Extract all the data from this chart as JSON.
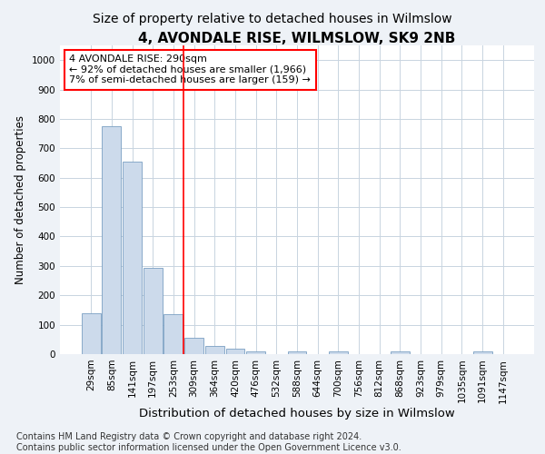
{
  "title": "4, AVONDALE RISE, WILMSLOW, SK9 2NB",
  "subtitle": "Size of property relative to detached houses in Wilmslow",
  "xlabel": "Distribution of detached houses by size in Wilmslow",
  "ylabel": "Number of detached properties",
  "categories": [
    "29sqm",
    "85sqm",
    "141sqm",
    "197sqm",
    "253sqm",
    "309sqm",
    "364sqm",
    "420sqm",
    "476sqm",
    "532sqm",
    "588sqm",
    "644sqm",
    "700sqm",
    "756sqm",
    "812sqm",
    "868sqm",
    "923sqm",
    "979sqm",
    "1035sqm",
    "1091sqm",
    "1147sqm"
  ],
  "values": [
    138,
    775,
    655,
    293,
    135,
    55,
    28,
    18,
    10,
    0,
    9,
    0,
    9,
    0,
    0,
    8,
    0,
    0,
    0,
    8,
    0
  ],
  "bar_color": "#ccdaeb",
  "bar_edge_color": "#7a9fc2",
  "property_line_x": 4.5,
  "annotation_line1": "4 AVONDALE RISE: 290sqm",
  "annotation_line2": "← 92% of detached houses are smaller (1,966)",
  "annotation_line3": "7% of semi-detached houses are larger (159) →",
  "ylim": [
    0,
    1050
  ],
  "yticks": [
    0,
    100,
    200,
    300,
    400,
    500,
    600,
    700,
    800,
    900,
    1000
  ],
  "footer_line1": "Contains HM Land Registry data © Crown copyright and database right 2024.",
  "footer_line2": "Contains public sector information licensed under the Open Government Licence v3.0.",
  "title_fontsize": 11,
  "subtitle_fontsize": 10,
  "xlabel_fontsize": 9.5,
  "ylabel_fontsize": 8.5,
  "tick_fontsize": 7.5,
  "annotation_fontsize": 8,
  "footer_fontsize": 7,
  "background_color": "#eef2f7",
  "plot_bg_color": "#ffffff",
  "grid_color": "#c8d4e0"
}
